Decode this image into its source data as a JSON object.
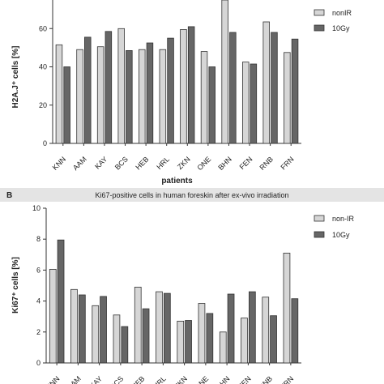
{
  "colors": {
    "nonir": "#d6d6d6",
    "gy10": "#666666",
    "stroke": "#333333",
    "band": "#e4e4e4"
  },
  "chart_data": [
    {
      "type": "bar",
      "panel": "",
      "title": "",
      "xlabel": "patients",
      "ylabel": "H2A.J⁺ cells [%]",
      "ylim": [
        0,
        80
      ],
      "yticks": [
        0,
        20,
        40,
        60
      ],
      "categories": [
        "KNN",
        "AAM",
        "KAY",
        "BCS",
        "HEB",
        "HRL",
        "ZKN",
        "ONE",
        "BHN",
        "FEN",
        "RNB",
        "FRN"
      ],
      "series": [
        {
          "name": "nonIR",
          "values": [
            51.5,
            49,
            50.5,
            60,
            49,
            49,
            59.5,
            48,
            80,
            42.5,
            63.5,
            47.5
          ]
        },
        {
          "name": "10Gy",
          "values": [
            40,
            55.5,
            58.5,
            48.5,
            52.5,
            55,
            61,
            40,
            58,
            41.5,
            58,
            54.5
          ]
        }
      ],
      "legend": "top-right"
    },
    {
      "type": "bar",
      "panel": "B",
      "title": "Ki67-positive cells in human foreskin after ex-vivo irradiation",
      "xlabel": "",
      "ylabel": "Ki67⁺ cells [%]",
      "ylim": [
        0,
        10
      ],
      "yticks": [
        0,
        2,
        4,
        6,
        8,
        10
      ],
      "categories": [
        "KNN",
        "AAM",
        "KAY",
        "BCS",
        "HEB",
        "HRL",
        "ZKN",
        "ONE",
        "BHN",
        "FEN",
        "RNB",
        "FRN"
      ],
      "series": [
        {
          "name": "non-IR",
          "values": [
            6.05,
            4.75,
            3.7,
            3.1,
            4.9,
            4.6,
            2.7,
            3.85,
            2.0,
            2.9,
            4.25,
            7.1
          ]
        },
        {
          "name": "10Gy",
          "values": [
            7.95,
            4.4,
            4.3,
            2.35,
            3.5,
            4.5,
            2.75,
            3.2,
            4.45,
            4.6,
            3.05,
            4.15
          ]
        }
      ],
      "legend": "top-right"
    }
  ]
}
